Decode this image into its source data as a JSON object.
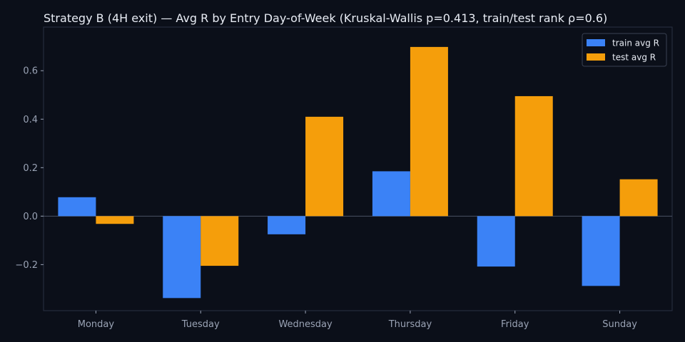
{
  "chart_data": {
    "type": "bar",
    "title": "Strategy B (4H exit) — Avg R by Entry Day-of-Week (Kruskal-Wallis p=0.413, train/test rank ρ=0.6)",
    "xlabel": "",
    "ylabel": "",
    "categories": [
      "Monday",
      "Tuesday",
      "Wednesday",
      "Thursday",
      "Friday",
      "Sunday"
    ],
    "series": [
      {
        "name": "train avg R",
        "color": "#3b82f6",
        "values": [
          0.078,
          -0.338,
          -0.075,
          0.185,
          -0.208,
          -0.288
        ]
      },
      {
        "name": "test avg R",
        "color": "#f59e0b",
        "values": [
          -0.032,
          -0.205,
          0.41,
          0.698,
          0.495,
          0.152
        ]
      }
    ],
    "ylim": [
      -0.39,
      0.78
    ],
    "yticks": [
      -0.2,
      0.0,
      0.2,
      0.4,
      0.6
    ],
    "ytick_labels": [
      "−0.2",
      "0.0",
      "0.2",
      "0.4",
      "0.6"
    ],
    "grid": false,
    "zero_line": true,
    "legend_position": "top-right",
    "colors": {
      "background": "#0b0f19",
      "axes_border": "#2a3142",
      "zero_line": "#4a5263",
      "text": "#e8ecf4",
      "tick_text": "#9aa3b5"
    }
  }
}
